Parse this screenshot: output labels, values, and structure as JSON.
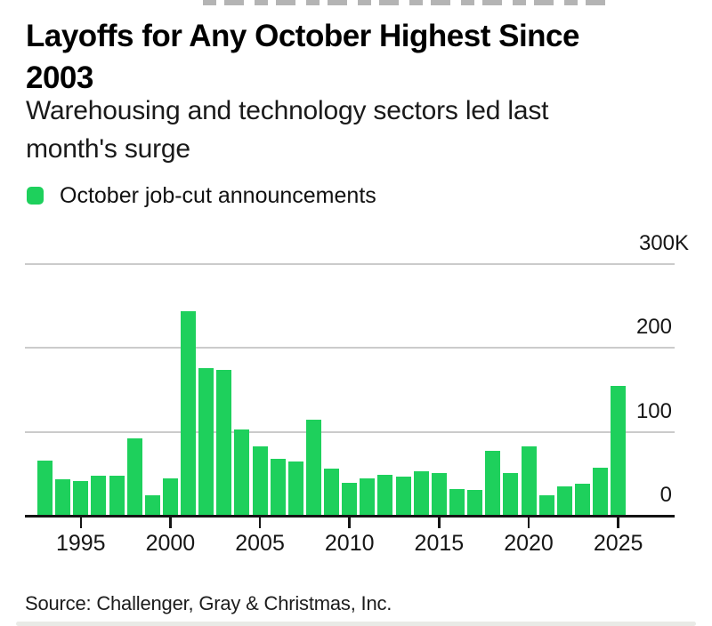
{
  "header": {
    "title_line1": "Layoffs for Any October Highest Since",
    "title_line2": "2003",
    "subtitle_line1": "Warehousing and technology sectors led last",
    "subtitle_line2": "month's surge"
  },
  "legend": {
    "label": "October job-cut announcements",
    "swatch_color": "#1ed05c"
  },
  "source": {
    "text": "Source: Challenger, Gray & Christmas, Inc."
  },
  "chart_data": {
    "type": "bar",
    "title": "Layoffs for Any October Highest Since 2003",
    "subtitle": "Warehousing and technology sectors led last month's surge",
    "legend_entries": [
      "October job-cut announcements"
    ],
    "legend_position": "top-left",
    "unit": "thousands of announced job cuts",
    "categories": [
      1993,
      1994,
      1995,
      1996,
      1997,
      1998,
      1999,
      2000,
      2001,
      2002,
      2003,
      2004,
      2005,
      2006,
      2007,
      2008,
      2009,
      2010,
      2011,
      2012,
      2013,
      2014,
      2015,
      2016,
      2017,
      2018,
      2019,
      2020,
      2021,
      2022,
      2023,
      2024,
      2025
    ],
    "values": [
      65,
      42,
      40,
      47,
      47,
      91,
      23,
      43,
      242,
      175,
      172,
      102,
      81,
      67,
      63,
      113,
      55,
      38,
      43,
      48,
      46,
      52,
      50,
      31,
      30,
      76,
      50,
      81,
      23,
      34,
      37,
      56,
      153
    ],
    "bar_color": "#1ed05c",
    "grid": true,
    "ylim": [
      0,
      300
    ],
    "y_ticks": [
      {
        "label": "300K",
        "value": 300
      },
      {
        "label": "200",
        "value": 200
      },
      {
        "label": "100",
        "value": 100
      },
      {
        "label": "0",
        "value": 0
      }
    ],
    "x_ticks": [
      1995,
      2000,
      2005,
      2010,
      2015,
      2020,
      2025
    ]
  }
}
